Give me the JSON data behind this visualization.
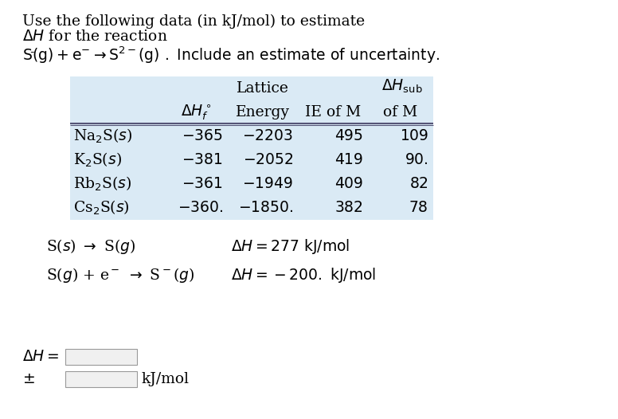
{
  "bg_color": "#ffffff",
  "table_bg_color": "#daeaf5",
  "font_size": 13.5,
  "title1": "Use the following data (in kJ/mol) to estimate",
  "title2": "$\\Delta H$ for the reaction",
  "title3_pre": "$\\mathrm{S^{\\bar{\\ }}(g) + e^- \\rightarrow S^{2-}(g)}$",
  "col_labels_row1": [
    "Lattice",
    "$\\Delta H_{\\mathrm{sub}}$"
  ],
  "col_labels_row2": [
    "$\\Delta H_f^\\circ$",
    "Energy",
    "IE of M",
    "of M"
  ],
  "row_labels": [
    "Na$_2$S($s$)",
    "K$_2$S($s$)",
    "Rb$_2$S($s$)",
    "Cs$_2$S($s$)"
  ],
  "data_dhf": [
    "-365",
    "-381",
    "-361",
    "-360."
  ],
  "data_lattice": [
    "-2203",
    "-2052",
    "-1949",
    "-1850."
  ],
  "data_ie": [
    "495",
    "419",
    "409",
    "382"
  ],
  "data_dhsub": [
    "109",
    "90.",
    "82",
    "78"
  ],
  "react1_lhs": "S($s$) $\\rightarrow$ S($g$)",
  "react1_rhs": "$\\Delta H =$ 277 kJ/mol",
  "react2_lhs": "S($g$) + e$^-$ $\\rightarrow$ S$^-$($g$)",
  "react2_rhs": "$\\Delta H = -200.$ kJ/mol"
}
